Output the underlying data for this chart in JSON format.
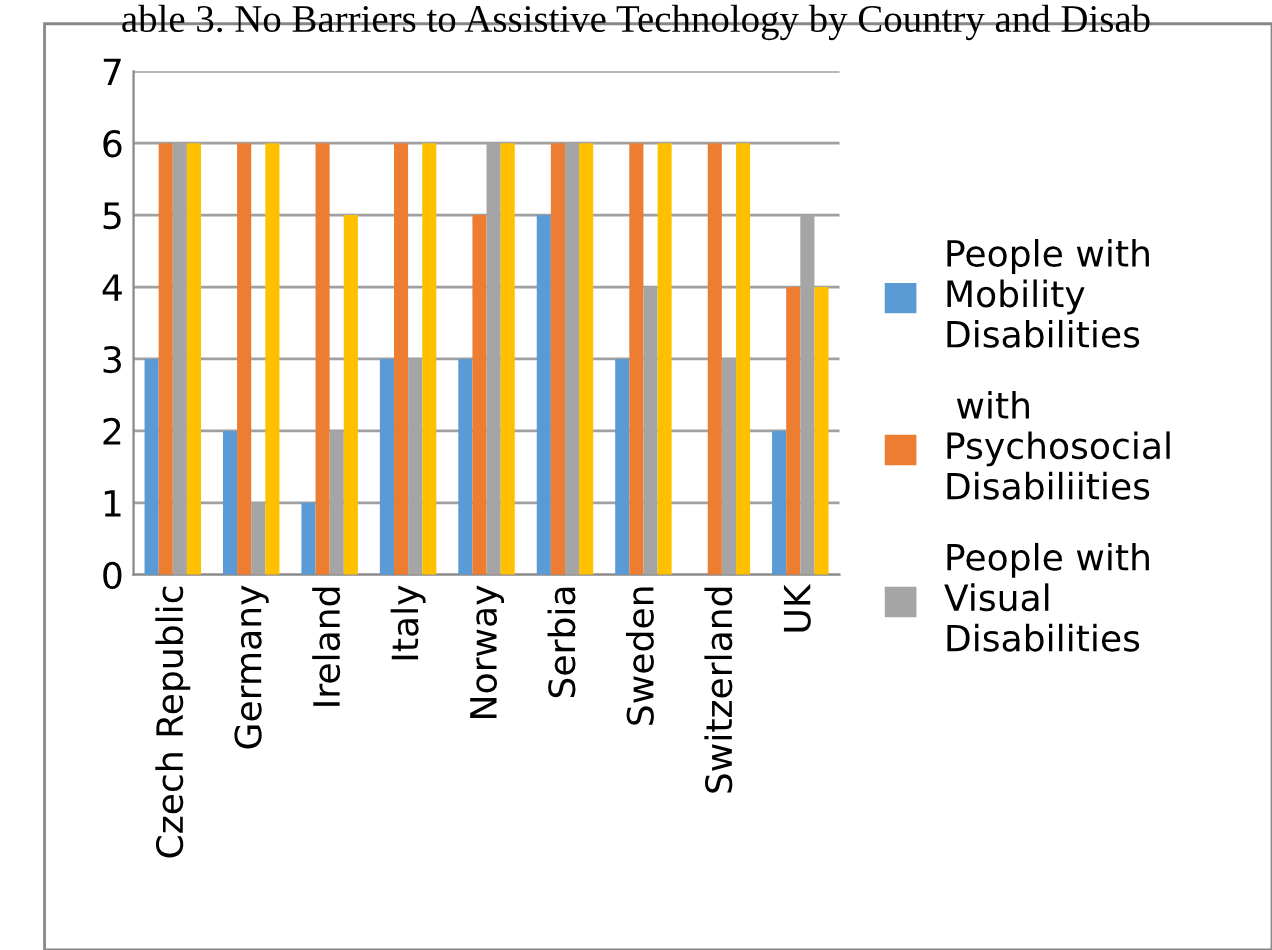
{
  "chart_data": {
    "type": "bar",
    "title": "able 3. No Barriers to Assistive Technology by Country and Disab",
    "categories": [
      "Czech Republic",
      "Germany",
      "Ireland",
      "Italy",
      "Norway",
      "Serbia",
      "Sweden",
      "Switzerland",
      "UK"
    ],
    "series": [
      {
        "name": "People with Mobility Disabilities",
        "color": "#5b9bd5",
        "values": [
          3,
          2,
          1,
          3,
          3,
          5,
          3,
          0,
          2
        ]
      },
      {
        "name": " with Psychosocial Disabiliities",
        "color": "#ed7d31",
        "values": [
          6,
          6,
          6,
          6,
          5,
          6,
          6,
          6,
          4
        ]
      },
      {
        "name": "People with Visual Disabilities",
        "color": "#a5a5a5",
        "values": [
          6,
          1,
          2,
          3,
          6,
          6,
          4,
          3,
          5
        ]
      },
      {
        "color": "#ffc000",
        "values": [
          6,
          6,
          5,
          6,
          6,
          6,
          6,
          6,
          4
        ]
      }
    ],
    "ylim": [
      0,
      7
    ],
    "yticks": [
      0,
      1,
      2,
      3,
      4,
      5,
      6,
      7
    ],
    "grid": "y",
    "legend": "right"
  }
}
